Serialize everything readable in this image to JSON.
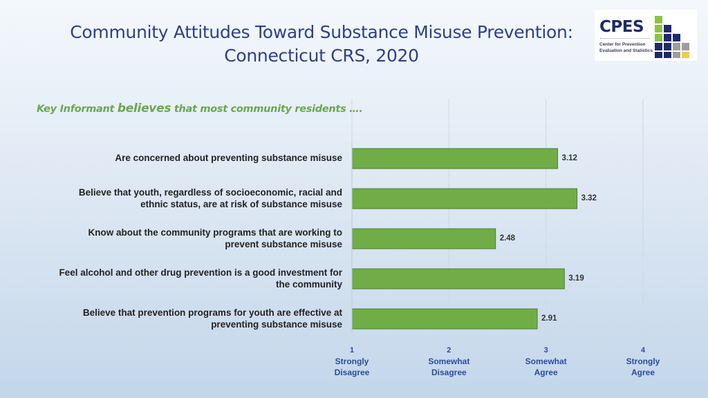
{
  "title_line1": "Community Attitudes Toward Substance Misuse Prevention:",
  "title_line2": "Connecticut CRS, 2020",
  "logo": {
    "name": "CPES",
    "sub1": "Center for Prevention",
    "sub2": "Evaluation and Statistics",
    "colors": {
      "green": "#8bc34a",
      "navy": "#1f2a6b",
      "gray": "#9e9e9e",
      "yellow": "#f2c94c"
    }
  },
  "subtitle": {
    "pre": "Key Informant ",
    "emph": "believes",
    "post": " that most community residents …."
  },
  "chart_data": {
    "type": "bar",
    "orientation": "horizontal",
    "title": "Key Informant believes that most community residents ….",
    "categories": [
      [
        "Are concerned about preventing substance misuse"
      ],
      [
        "Believe that youth, regardless of socioeconomic, racial and",
        "ethnic status, are at risk of substance misuse"
      ],
      [
        "Know about the community programs that are working to",
        "prevent substance misuse"
      ],
      [
        "Feel alcohol and other drug prevention is a good investment for",
        "the community"
      ],
      [
        "Believe that prevention programs for youth are effective at",
        "preventing substance misuse"
      ]
    ],
    "values": [
      3.12,
      3.32,
      2.48,
      3.19,
      2.91
    ],
    "value_labels": [
      "3.12",
      "3.32",
      "2.48",
      "3.19",
      "2.91"
    ],
    "xlim": [
      1,
      4
    ],
    "ticks": [
      {
        "value": 1,
        "num": "1",
        "line1": "Strongly",
        "line2": "Disagree"
      },
      {
        "value": 2,
        "num": "2",
        "line1": "Somewhat",
        "line2": "Disagree"
      },
      {
        "value": 3,
        "num": "3",
        "line1": "Somewhat",
        "line2": "Agree"
      },
      {
        "value": 4,
        "num": "4",
        "line1": "Strongly",
        "line2": "Agree"
      }
    ],
    "bar_color": "#70ad47",
    "grid": true,
    "legend": "none"
  }
}
